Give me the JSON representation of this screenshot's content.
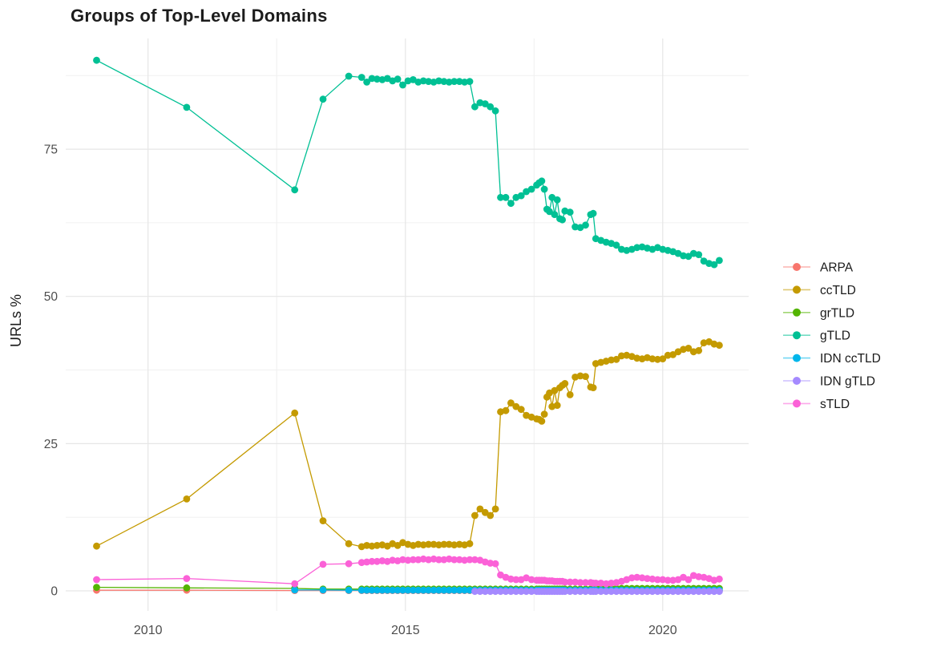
{
  "chart_data": {
    "type": "line",
    "title": "Groups of Top-Level Domains",
    "xlabel": "",
    "ylabel": "URLs %",
    "x_ticks": [
      2010,
      2015,
      2020
    ],
    "x_minor_ticks": [
      2012.5,
      2017.5
    ],
    "y_ticks": [
      0,
      25,
      50,
      75
    ],
    "y_minor_ticks": [
      12.5,
      37.5,
      62.5,
      87.5
    ],
    "xlim": [
      2008.4,
      2021.67
    ],
    "ylim": [
      -1.5,
      93.8
    ],
    "grid": true,
    "legend_position": "right",
    "marker": "circle",
    "x": [
      2009.0,
      2010.75,
      2012.85,
      2013.4,
      2013.9,
      2014.15,
      2014.25,
      2014.35,
      2014.45,
      2014.55,
      2014.65,
      2014.75,
      2014.85,
      2014.95,
      2015.05,
      2015.15,
      2015.25,
      2015.35,
      2015.45,
      2015.55,
      2015.65,
      2015.75,
      2015.85,
      2015.95,
      2016.05,
      2016.15,
      2016.25,
      2016.35,
      2016.45,
      2016.55,
      2016.65,
      2016.75,
      2016.85,
      2016.95,
      2017.05,
      2017.15,
      2017.25,
      2017.35,
      2017.45,
      2017.55,
      2017.6,
      2017.65,
      2017.7,
      2017.75,
      2017.8,
      2017.85,
      2017.9,
      2017.95,
      2018.0,
      2018.05,
      2018.1,
      2018.2,
      2018.3,
      2018.4,
      2018.5,
      2018.6,
      2018.65,
      2018.7,
      2018.8,
      2018.9,
      2019.0,
      2019.1,
      2019.2,
      2019.3,
      2019.4,
      2019.5,
      2019.6,
      2019.7,
      2019.8,
      2019.9,
      2020.0,
      2020.1,
      2020.2,
      2020.3,
      2020.4,
      2020.5,
      2020.6,
      2020.7,
      2020.8,
      2020.9,
      2021.0,
      2021.1
    ],
    "series": [
      {
        "name": "ARPA",
        "color": "#F8766D",
        "values": [
          0.1,
          0.1,
          0.05,
          0.05,
          0.05,
          0.05,
          0.05,
          0.05,
          0.05,
          0.05,
          0.05,
          0.05,
          0.05,
          0.05,
          0.05,
          0.05,
          0.05,
          0.05,
          0.05,
          0.05,
          0.05,
          0.05,
          0.05,
          0.05,
          0.05,
          0.05,
          0.05,
          0.05,
          0.05,
          0.05,
          0.05,
          0.05,
          0.05,
          0.05,
          0.05,
          0.05,
          0.05,
          0.05,
          0.05,
          0.05,
          0.05,
          0.05,
          0.05,
          0.05,
          0.05,
          0.05,
          0.05,
          0.05,
          0.05,
          0.05,
          0.05,
          0.05,
          0.05,
          0.05,
          0.05,
          0.05,
          0.05,
          0.05,
          0.05,
          0.05,
          0.05,
          0.05,
          0.05,
          0.05,
          0.05,
          0.05,
          0.05,
          0.05,
          0.05,
          0.05,
          0.05,
          0.05,
          0.05,
          0.05,
          0.05,
          0.05,
          0.05,
          0.05,
          0.05,
          0.05,
          0.05,
          0.05
        ]
      },
      {
        "name": "ccTLD",
        "color": "#C49A00",
        "values": [
          7.6,
          15.6,
          30.2,
          11.9,
          8.0,
          7.5,
          7.7,
          7.6,
          7.7,
          7.8,
          7.6,
          8.0,
          7.7,
          8.2,
          7.9,
          7.7,
          7.9,
          7.8,
          7.9,
          7.9,
          7.8,
          7.9,
          7.9,
          7.8,
          7.9,
          7.8,
          8.0,
          12.8,
          13.9,
          13.3,
          12.8,
          13.9,
          30.4,
          30.6,
          31.9,
          31.3,
          30.8,
          29.8,
          29.5,
          29.2,
          29.1,
          28.8,
          30.0,
          32.9,
          33.6,
          31.3,
          34.0,
          31.5,
          34.5,
          34.9,
          35.2,
          33.3,
          36.3,
          36.5,
          36.4,
          34.6,
          34.5,
          38.6,
          38.8,
          39.0,
          39.2,
          39.3,
          39.9,
          40.0,
          39.8,
          39.5,
          39.4,
          39.6,
          39.4,
          39.3,
          39.4,
          40.0,
          40.1,
          40.6,
          41.0,
          41.2,
          40.6,
          40.8,
          42.1,
          42.3,
          41.9,
          41.7
        ]
      },
      {
        "name": "grTLD",
        "color": "#53B400",
        "values": [
          0.6,
          0.5,
          0.4,
          0.3,
          0.3,
          0.3,
          0.3,
          0.3,
          0.3,
          0.3,
          0.3,
          0.3,
          0.3,
          0.3,
          0.3,
          0.3,
          0.3,
          0.3,
          0.3,
          0.3,
          0.3,
          0.3,
          0.3,
          0.3,
          0.3,
          0.3,
          0.3,
          0.3,
          0.3,
          0.3,
          0.3,
          0.3,
          0.3,
          0.3,
          0.3,
          0.3,
          0.3,
          0.3,
          0.3,
          0.3,
          0.3,
          0.3,
          0.3,
          0.3,
          0.3,
          0.3,
          0.3,
          0.3,
          0.3,
          0.3,
          0.3,
          0.3,
          0.3,
          0.3,
          0.3,
          0.3,
          0.3,
          0.4,
          0.4,
          0.4,
          0.4,
          0.4,
          0.4,
          0.4,
          0.4,
          0.4,
          0.4,
          0.4,
          0.4,
          0.4,
          0.4,
          0.4,
          0.4,
          0.4,
          0.4,
          0.4,
          0.4,
          0.4,
          0.4,
          0.4,
          0.4,
          0.4
        ]
      },
      {
        "name": "gTLD",
        "color": "#00C094",
        "values": [
          90.1,
          82.1,
          68.1,
          83.5,
          87.4,
          87.2,
          86.4,
          87.0,
          86.9,
          86.8,
          87.0,
          86.6,
          86.9,
          85.9,
          86.6,
          86.8,
          86.4,
          86.6,
          86.5,
          86.4,
          86.6,
          86.5,
          86.4,
          86.5,
          86.5,
          86.4,
          86.5,
          82.2,
          82.9,
          82.7,
          82.2,
          81.5,
          66.8,
          66.8,
          65.8,
          66.8,
          67.1,
          67.8,
          68.2,
          68.9,
          69.3,
          69.6,
          68.2,
          64.8,
          64.4,
          66.8,
          63.9,
          66.4,
          63.2,
          63.0,
          64.5,
          64.3,
          61.8,
          61.7,
          62.1,
          63.9,
          64.1,
          59.8,
          59.5,
          59.2,
          59.0,
          58.7,
          58.0,
          57.8,
          58.0,
          58.3,
          58.4,
          58.2,
          58.0,
          58.3,
          58.0,
          57.8,
          57.6,
          57.3,
          56.9,
          56.8,
          57.3,
          57.1,
          56.0,
          55.6,
          55.4,
          56.1
        ]
      },
      {
        "name": "IDN ccTLD",
        "color": "#00B6EB",
        "values": [
          null,
          null,
          0.15,
          0.15,
          0.1,
          0.1,
          0.1,
          0.1,
          0.1,
          0.1,
          0.1,
          0.1,
          0.1,
          0.1,
          0.1,
          0.1,
          0.1,
          0.1,
          0.1,
          0.1,
          0.1,
          0.1,
          0.1,
          0.1,
          0.1,
          0.1,
          0.1,
          0.1,
          0.1,
          0.1,
          0.1,
          0.1,
          0.1,
          0.1,
          0.1,
          0.1,
          0.1,
          0.1,
          0.1,
          0.1,
          0.1,
          0.1,
          0.1,
          0.1,
          0.1,
          0.1,
          0.1,
          0.1,
          0.1,
          0.1,
          0.1,
          0.1,
          0.1,
          0.1,
          0.1,
          0.1,
          0.1,
          0.1,
          0.1,
          0.1,
          0.1,
          0.1,
          0.1,
          0.1,
          0.1,
          0.1,
          0.1,
          0.1,
          0.1,
          0.1,
          0.1,
          0.1,
          0.1,
          0.1,
          0.1,
          0.1,
          0.1,
          0.1,
          0.1,
          0.1,
          0.1,
          0.1
        ]
      },
      {
        "name": "IDN gTLD",
        "color": "#A58AFF",
        "values": [
          null,
          null,
          null,
          null,
          null,
          null,
          null,
          null,
          null,
          null,
          null,
          null,
          null,
          null,
          null,
          null,
          null,
          null,
          null,
          null,
          null,
          null,
          null,
          null,
          null,
          null,
          null,
          -0.1,
          -0.1,
          -0.1,
          -0.1,
          -0.1,
          -0.1,
          -0.1,
          -0.1,
          -0.1,
          -0.1,
          -0.1,
          -0.1,
          -0.1,
          -0.1,
          -0.1,
          -0.1,
          -0.1,
          -0.1,
          -0.1,
          -0.1,
          -0.1,
          -0.1,
          -0.1,
          -0.1,
          -0.1,
          -0.1,
          -0.1,
          -0.1,
          -0.1,
          -0.1,
          -0.1,
          -0.1,
          -0.1,
          -0.1,
          -0.1,
          -0.1,
          -0.1,
          -0.1,
          -0.1,
          -0.1,
          -0.1,
          -0.1,
          -0.1,
          -0.1,
          -0.1,
          -0.1,
          -0.1,
          -0.1,
          -0.1,
          -0.1,
          -0.1,
          -0.1,
          -0.1,
          -0.1,
          -0.1
        ]
      },
      {
        "name": "sTLD",
        "color": "#FB61D7",
        "values": [
          1.9,
          2.1,
          1.2,
          4.5,
          4.6,
          4.8,
          4.9,
          5.0,
          5.0,
          5.1,
          5.0,
          5.2,
          5.1,
          5.3,
          5.2,
          5.3,
          5.3,
          5.4,
          5.3,
          5.4,
          5.3,
          5.3,
          5.4,
          5.3,
          5.3,
          5.2,
          5.3,
          5.3,
          5.2,
          4.9,
          4.7,
          4.6,
          2.7,
          2.3,
          2.0,
          1.9,
          1.9,
          2.2,
          1.9,
          1.8,
          1.8,
          1.8,
          1.8,
          1.7,
          1.7,
          1.7,
          1.6,
          1.6,
          1.6,
          1.6,
          1.5,
          1.5,
          1.5,
          1.4,
          1.4,
          1.4,
          1.3,
          1.3,
          1.3,
          1.2,
          1.3,
          1.4,
          1.6,
          1.9,
          2.2,
          2.3,
          2.2,
          2.1,
          2.0,
          1.9,
          1.9,
          1.8,
          1.8,
          1.9,
          2.3,
          1.9,
          2.6,
          2.4,
          2.3,
          2.1,
          1.8,
          2.0
        ]
      }
    ]
  }
}
